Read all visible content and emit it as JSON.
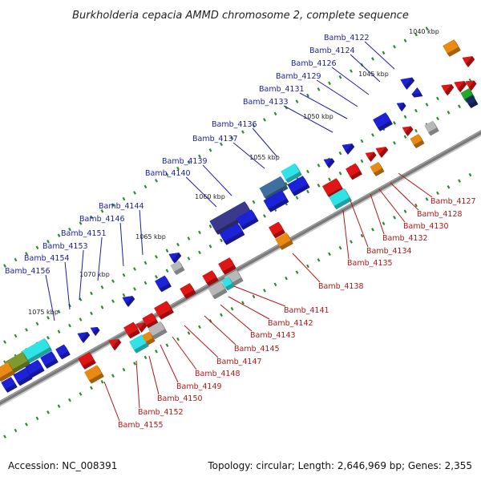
{
  "title": "Burkholderia cepacia AMMD chromosome 2, complete sequence",
  "accession_text": "Accession: NC_008391",
  "topology_text": "Topology: circular; Length: 2,646,969 bp; Genes: 2,355",
  "colors": {
    "backbone": "#7a7a7a",
    "tick_dot": "#2e8b2e",
    "label_top": "#1c1ca8",
    "label_bottom": "#b01818",
    "blue": "#1d22d8",
    "red": "#e01616",
    "orange": "#e98a12",
    "cyan": "#2fe3e6",
    "olive": "#7e9a2e",
    "slate": "#3f6f9f",
    "purple": "#3a3a8c",
    "gray": "#b8b8b8",
    "green": "#22a82a",
    "navy": "#1a2a6a"
  },
  "ruler": [
    {
      "label": "1040 kbp"
    },
    {
      "label": "1045 kbp"
    },
    {
      "label": "1050 kbp"
    },
    {
      "label": "1055 kbp"
    },
    {
      "label": "1060 kbp"
    },
    {
      "label": "1065 kbp"
    },
    {
      "label": "1070 kbp"
    },
    {
      "label": "1075 kbp"
    }
  ],
  "genes_top": [
    "Bamb_4122",
    "Bamb_4124",
    "Bamb_4126",
    "Bamb_4129",
    "Bamb_4131",
    "Bamb_4133",
    "Bamb_4136",
    "Bamb_4137",
    "Bamb_4139",
    "Bamb_4140",
    "Bamb_4144",
    "Bamb_4146",
    "Bamb_4151",
    "Bamb_4153",
    "Bamb_4154",
    "Bamb_4156"
  ],
  "genes_bottom": [
    "Bamb_4127",
    "Bamb_4128",
    "Bamb_4130",
    "Bamb_4132",
    "Bamb_4134",
    "Bamb_4135",
    "Bamb_4138",
    "Bamb_4141",
    "Bamb_4142",
    "Bamb_4143",
    "Bamb_4145",
    "Bamb_4147",
    "Bamb_4148",
    "Bamb_4149",
    "Bamb_4150",
    "Bamb_4152",
    "Bamb_4155"
  ],
  "features": [
    {
      "color": "orange",
      "shape": "box"
    },
    {
      "color": "blue",
      "shape": "arrow"
    },
    {
      "color": "red",
      "shape": "arrow"
    },
    {
      "color": "cyan",
      "shape": "box"
    },
    {
      "color": "slate",
      "shape": "box"
    },
    {
      "color": "purple",
      "shape": "box"
    },
    {
      "color": "gray",
      "shape": "box"
    },
    {
      "color": "olive",
      "shape": "box"
    },
    {
      "color": "green",
      "shape": "box"
    },
    {
      "color": "navy",
      "shape": "box"
    }
  ]
}
